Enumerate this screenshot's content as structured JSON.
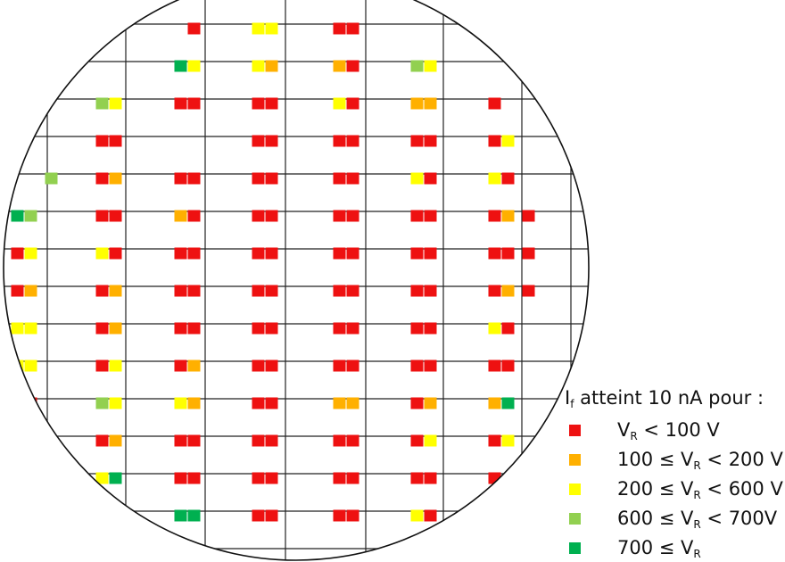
{
  "colors": {
    "r": "#ee1111",
    "o": "#ffb000",
    "y": "#ffff00",
    "lg": "#92d050",
    "dg": "#00b050"
  },
  "wafer": {
    "rows": [
      [
        "",
        "",
        "",
        "-r",
        "yy",
        "",
        "rr",
        "",
        "",
        "",
        "",
        ""
      ],
      [
        "",
        "",
        "",
        "dgy",
        "yo",
        "",
        "or",
        "",
        "lgy",
        "",
        "",
        ""
      ],
      [
        "",
        "",
        "lgy",
        "rr",
        "rr",
        "",
        "yr",
        "",
        "oo",
        "",
        "r",
        ""
      ],
      [
        "",
        "",
        "rr",
        "",
        "rr",
        "",
        "rr",
        "",
        "rr",
        "",
        "ry",
        ""
      ],
      [
        "",
        "-lg",
        "ro",
        "rr",
        "rr",
        "",
        "rr",
        "",
        "yr",
        "",
        "yr",
        ""
      ],
      [
        "dglg",
        "",
        "rr",
        "or",
        "rr",
        "",
        "rr",
        "",
        "rr",
        "",
        "ro",
        "r-"
      ],
      [
        "ry",
        "",
        "yr",
        "rr",
        "rr",
        "",
        "rr",
        "",
        "rr",
        "",
        "rr",
        "r-"
      ],
      [
        "ro",
        "",
        "ro",
        "rr",
        "rr",
        "",
        "rr",
        "",
        "rr",
        "",
        "ro",
        "r-"
      ],
      [
        "yy",
        "",
        "ro",
        "rr",
        "rr",
        "",
        "rr",
        "",
        "rr",
        "",
        "yr",
        ""
      ],
      [
        "yy",
        "",
        "ry",
        "ro",
        "rr",
        "",
        "rr",
        "",
        "rr",
        "",
        "rr",
        ""
      ],
      [
        "-r",
        "",
        "lgy",
        "yo",
        "rr",
        "",
        "oo",
        "",
        "ro",
        "",
        "odg",
        ""
      ],
      [
        "",
        "",
        "ro",
        "rr",
        "rr",
        "",
        "rr",
        "",
        "ry",
        "",
        "ry",
        ""
      ],
      [
        "",
        "",
        "ydg",
        "rr",
        "rr",
        "",
        "rr",
        "",
        "rr",
        "",
        "r-",
        ""
      ],
      [
        "",
        "",
        "",
        "dgdg",
        "rr",
        "",
        "rr",
        "",
        "yr",
        "",
        "",
        ""
      ]
    ]
  },
  "legend": {
    "title_main": "I",
    "title_sub": "f",
    "title_rest": " atteint 10 nA pour :",
    "items": [
      {
        "color": "r",
        "pre": "V",
        "sub": "R",
        "post": " < 100 V"
      },
      {
        "color": "o",
        "pre": "100 ≤ V",
        "sub": "R",
        "post": " < 200 V"
      },
      {
        "color": "y",
        "pre": "200 ≤ V",
        "sub": "R",
        "post": " < 600 V"
      },
      {
        "color": "lg",
        "pre": "600 ≤ V",
        "sub": "R",
        "post": " < 700V"
      },
      {
        "color": "dg",
        "pre": "700 ≤ V",
        "sub": "R",
        "post": ""
      }
    ]
  }
}
